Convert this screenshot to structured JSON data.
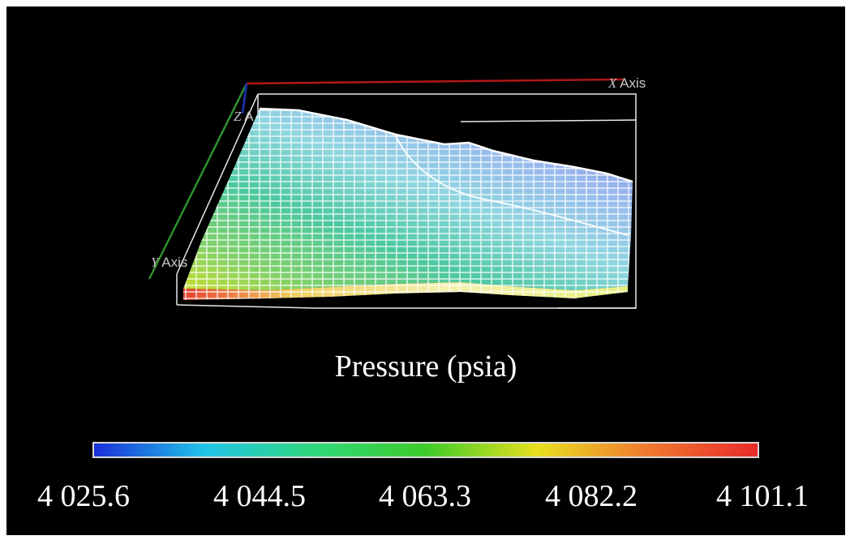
{
  "figure": {
    "title": "Pressure (psia)",
    "axes": {
      "x_letter": "X",
      "x_rest": " Axis",
      "y_letter": "Y",
      "y_rest": " Axis",
      "z_letter": "Z",
      "z_rest": " A"
    },
    "colorbar": {
      "colors": [
        "#1a2fd8",
        "#22c4e8",
        "#2fd87a",
        "#3ecb2a",
        "#e8e020",
        "#f07a30",
        "#e82a2a"
      ],
      "tick_labels": [
        "4 025.6",
        "4 044.5",
        "4 063.3",
        "4 082.2",
        "4 101.1"
      ],
      "range": [
        4025.6,
        4101.1
      ]
    },
    "background": "#000000",
    "axis_colors": {
      "x": "#b01818",
      "y": "#2f8f2f",
      "z": "#1a2f9f",
      "box": "#e8e8e8"
    }
  }
}
